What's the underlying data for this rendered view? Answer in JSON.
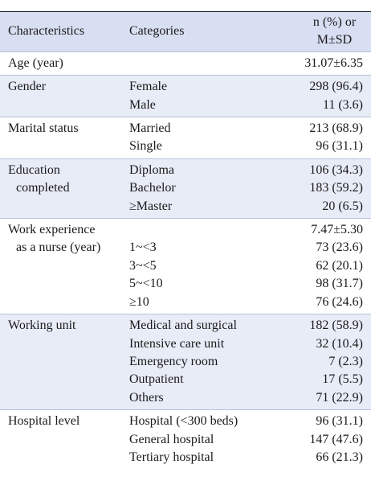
{
  "top_note": "",
  "headers": {
    "characteristics": "Characteristics",
    "categories": "Categories",
    "value_line1": "n (%) or",
    "value_line2": "M±SD"
  },
  "rows": [
    {
      "characteristic": [
        "Age (year)"
      ],
      "categories": [
        ""
      ],
      "values": [
        "31.07±6.35"
      ]
    },
    {
      "characteristic": [
        "Gender"
      ],
      "categories": [
        "Female",
        "Male"
      ],
      "values": [
        "298 (96.4)",
        "11 (3.6)"
      ]
    },
    {
      "characteristic": [
        "Marital status"
      ],
      "categories": [
        "Married",
        "Single"
      ],
      "values": [
        "213 (68.9)",
        "96 (31.1)"
      ]
    },
    {
      "characteristic": [
        "Education",
        "completed"
      ],
      "categories": [
        "Diploma",
        "Bachelor",
        "≥Master"
      ],
      "values": [
        "106 (34.3)",
        "183 (59.2)",
        "20 (6.5)"
      ]
    },
    {
      "characteristic": [
        "Work experience",
        "as a nurse (year)"
      ],
      "categories": [
        "",
        "1~<3",
        "3~<5",
        "5~<10",
        "≥10"
      ],
      "values": [
        "7.47±5.30",
        "73 (23.6)",
        "62 (20.1)",
        "98 (31.7)",
        "76 (24.6)"
      ]
    },
    {
      "characteristic": [
        "Working unit"
      ],
      "categories": [
        "Medical and surgical",
        "Intensive care unit",
        "Emergency room",
        "Outpatient",
        "Others"
      ],
      "values": [
        "182 (58.9)",
        "32 (10.4)",
        "7 (2.3)",
        "17 (5.5)",
        "71 (22.9)"
      ]
    },
    {
      "characteristic": [
        "Hospital level"
      ],
      "categories": [
        "Hospital (<300 beds)",
        "General hospital",
        "Tertiary hospital"
      ],
      "values": [
        "96 (31.1)",
        "147 (47.6)",
        "66 (21.3)"
      ]
    }
  ]
}
